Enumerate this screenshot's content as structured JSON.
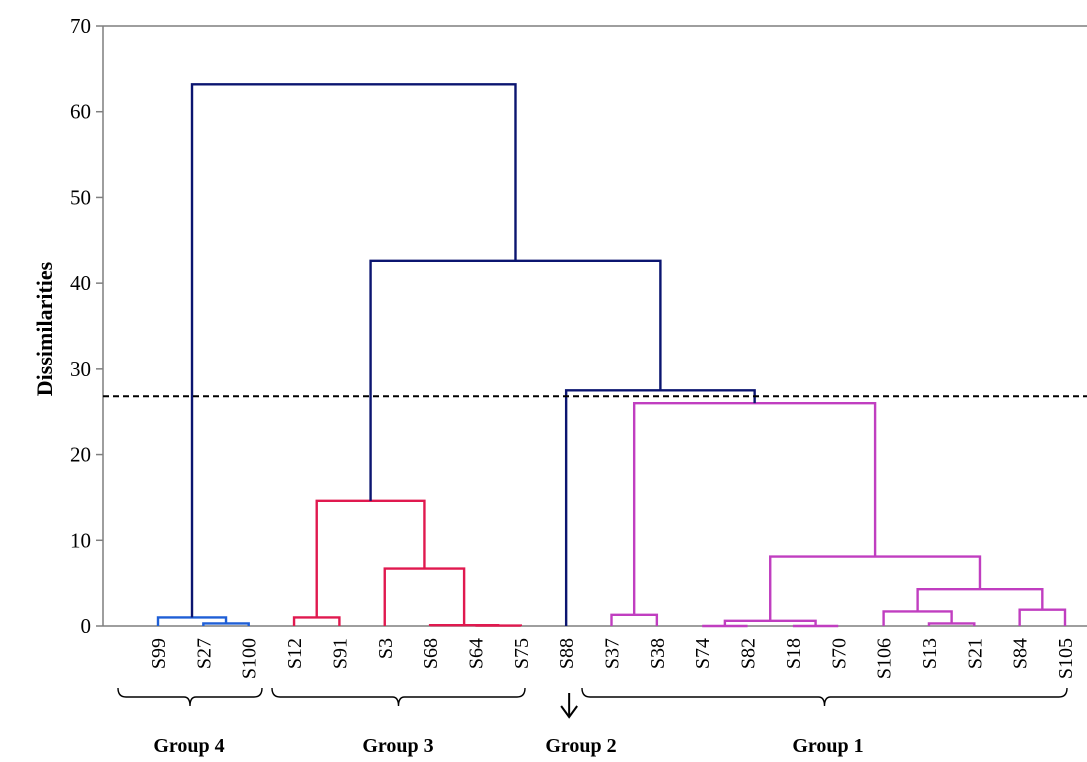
{
  "chart_data": {
    "type": "dendrogram",
    "ylabel": "Dissimilarities",
    "ylim": [
      0,
      70
    ],
    "yticks": [
      0,
      10,
      20,
      30,
      40,
      50,
      60,
      70
    ],
    "cut_line": 26.8,
    "leaves": [
      "S99",
      "S27",
      "S100",
      "S12",
      "S91",
      "S3",
      "S68",
      "S64",
      "S75",
      "S88",
      "S37",
      "S38",
      "S74",
      "S82",
      "S18",
      "S70",
      "S106",
      "S13",
      "S21",
      "S84",
      "S105"
    ],
    "colors": {
      "group4": "#1f5fd6",
      "group3": "#e0194f",
      "group1": "#c03ec0",
      "root": "#0b1570",
      "axis": "#7f7f7f",
      "cut": "#000000"
    },
    "merges": [
      {
        "left": "S27",
        "right": "S100",
        "height": 0.3,
        "group": "group4"
      },
      {
        "left": "S99",
        "right": "S27+S100",
        "height": 1.0,
        "group": "group4"
      },
      {
        "left": "S12",
        "right": "S91",
        "height": 1.0,
        "group": "group3"
      },
      {
        "left": "S64",
        "right": "S75",
        "height": 0.05,
        "group": "group3"
      },
      {
        "left": "S68",
        "right": "S64+S75",
        "height": 0.1,
        "group": "group3"
      },
      {
        "left": "S3",
        "right": "S68+S64+S75",
        "height": 6.7,
        "group": "group3"
      },
      {
        "left": "S12+S91",
        "right": "S3..S75",
        "height": 14.6,
        "group": "group3"
      },
      {
        "left": "S37",
        "right": "S38",
        "height": 1.3,
        "group": "group1"
      },
      {
        "left": "S74",
        "right": "S82",
        "height": 0.0,
        "group": "group1"
      },
      {
        "left": "S18",
        "right": "S70",
        "height": 0.0,
        "group": "group1"
      },
      {
        "left": "S74+S82",
        "right": "S18+S70",
        "height": 0.6,
        "group": "group1"
      },
      {
        "left": "S13",
        "right": "S21",
        "height": 0.3,
        "group": "group1"
      },
      {
        "left": "S106",
        "right": "S13+S21",
        "height": 1.7,
        "group": "group1"
      },
      {
        "left": "S84",
        "right": "S105",
        "height": 1.9,
        "group": "group1"
      },
      {
        "left": "S106+S13+S21",
        "right": "S84+S105",
        "height": 4.3,
        "group": "group1"
      },
      {
        "left": "S74..S70",
        "right": "S106..S105",
        "height": 8.1,
        "group": "group1"
      },
      {
        "left": "S37+S38",
        "right": "S74..S105",
        "height": 26.0,
        "group": "group1"
      },
      {
        "left": "S88",
        "right": "Group 1",
        "height": 27.5,
        "group": "root"
      },
      {
        "left": "Group 3",
        "right": "Group 2+Group 1",
        "height": 42.6,
        "group": "root"
      },
      {
        "left": "Group 4",
        "right": "rest",
        "height": 63.2,
        "group": "root"
      }
    ],
    "groups": [
      {
        "label": "Group 4",
        "leaves": [
          "S99",
          "S27",
          "S100"
        ]
      },
      {
        "label": "Group 3",
        "leaves": [
          "S12",
          "S91",
          "S3",
          "S68",
          "S64",
          "S75"
        ]
      },
      {
        "label": "Group 2",
        "leaves": [
          "S88"
        ]
      },
      {
        "label": "Group 1",
        "leaves": [
          "S37",
          "S38",
          "S74",
          "S82",
          "S18",
          "S70",
          "S106",
          "S13",
          "S21",
          "S84",
          "S105"
        ]
      }
    ]
  }
}
